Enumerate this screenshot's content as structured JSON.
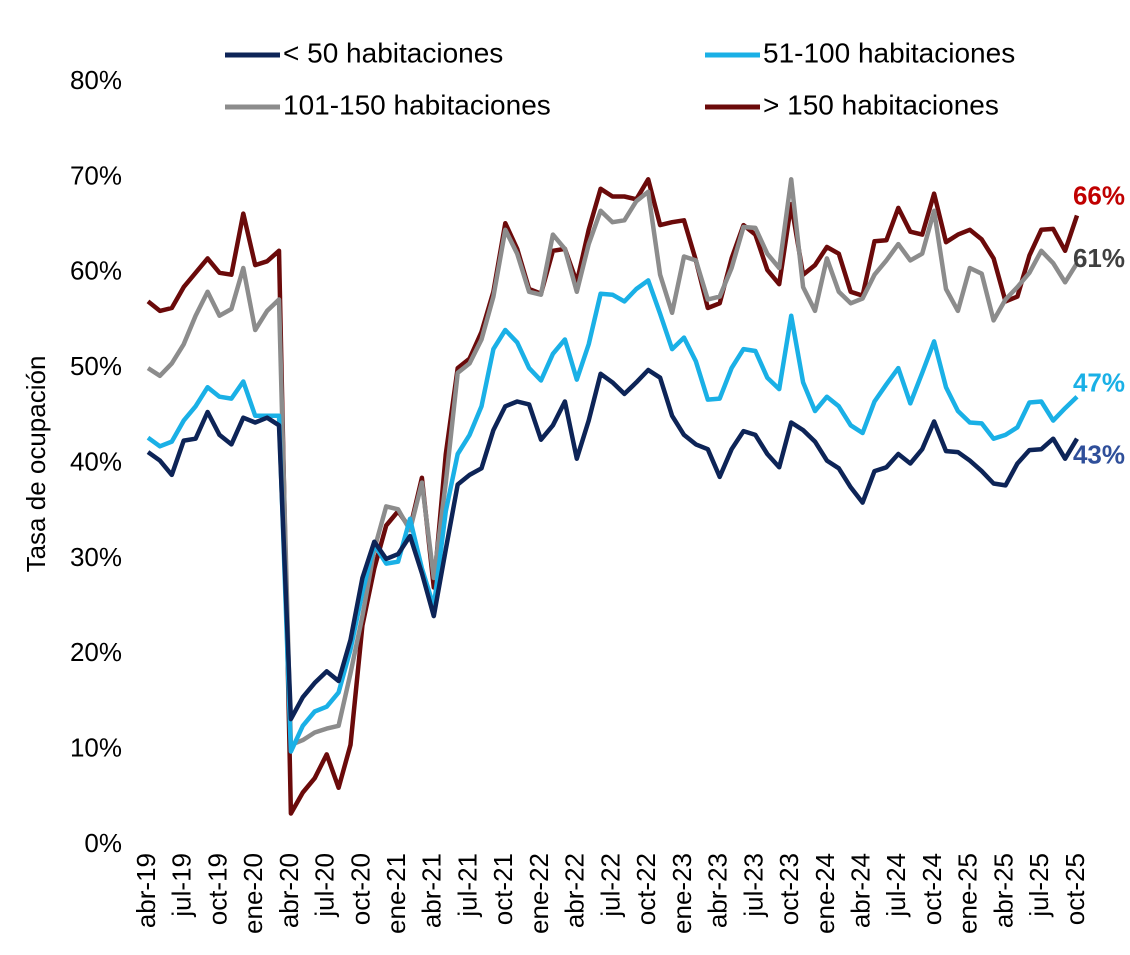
{
  "chart_data": {
    "type": "line",
    "y_axis_label": "Tasa de ocupación",
    "categories": [
      "abr-19",
      null,
      null,
      "jul-19",
      null,
      null,
      "oct-19",
      null,
      null,
      "ene-20",
      null,
      null,
      "abr-20",
      null,
      null,
      "jul-20",
      null,
      null,
      "oct-20",
      null,
      null,
      "ene-21",
      null,
      null,
      "abr-21",
      null,
      null,
      "jul-21",
      null,
      null,
      "oct-21",
      null,
      null,
      "ene-22",
      null,
      null,
      "abr-22",
      null,
      null,
      "jul-22",
      null,
      null,
      "oct-22",
      null,
      null,
      "ene-23",
      null,
      null,
      "abr-23",
      null,
      null,
      "jul-23",
      null,
      null,
      "oct-23",
      null,
      null,
      "ene-24",
      null,
      null,
      "abr-24",
      null,
      null,
      "jul-24",
      null,
      null,
      "oct-24",
      null,
      null,
      "ene-25",
      null,
      null,
      "abr-25",
      null,
      null,
      "jul-25",
      null,
      null,
      "oct-25"
    ],
    "ylim": [
      0,
      80
    ],
    "yticks": [
      {
        "value": 0,
        "label": "0%"
      },
      {
        "value": 10,
        "label": "10%"
      },
      {
        "value": 20,
        "label": "20%"
      },
      {
        "value": 30,
        "label": "30%"
      },
      {
        "value": 40,
        "label": "40%"
      },
      {
        "value": 50,
        "label": "50%"
      },
      {
        "value": 60,
        "label": "60%"
      },
      {
        "value": 70,
        "label": "70%"
      },
      {
        "value": 80,
        "label": "80%"
      }
    ],
    "grid": false,
    "legend": "top",
    "series": [
      {
        "name": "< 50 habitaciones",
        "color": "#0d2457",
        "label_color": "#2f4f9a",
        "values": [
          41.2,
          40.3,
          38.8,
          42.4,
          42.6,
          45.4,
          43.0,
          42.0,
          44.8,
          44.3,
          44.8,
          44.0,
          13.2,
          15.5,
          17.0,
          18.2,
          17.2,
          21.5,
          28.0,
          31.8,
          30.0,
          30.5,
          32.4,
          28.5,
          24.0,
          31.0,
          37.8,
          38.8,
          39.5,
          43.5,
          46.0,
          46.5,
          46.2,
          42.5,
          44.0,
          46.5,
          40.5,
          44.5,
          49.4,
          48.5,
          47.3,
          48.5,
          49.8,
          49.0,
          45.0,
          43.0,
          42.0,
          41.5,
          38.6,
          41.5,
          43.4,
          43.0,
          41.0,
          39.6,
          44.3,
          43.5,
          42.3,
          40.3,
          39.5,
          37.5,
          35.9,
          39.2,
          39.6,
          41.0,
          40.0,
          41.5,
          44.4,
          41.3,
          41.2,
          40.3,
          39.2,
          37.9,
          37.7,
          40.0,
          41.4,
          41.5,
          42.6,
          40.5,
          42.6
        ],
        "value_labels": [
          null,
          null,
          null,
          null,
          null,
          null,
          null,
          null,
          null,
          null,
          null,
          null,
          null,
          null,
          null,
          null,
          null,
          null,
          null,
          null,
          null,
          null,
          null,
          null,
          null,
          null,
          null,
          null,
          null,
          null,
          null,
          null,
          null,
          null,
          null,
          null,
          null,
          null,
          null,
          null,
          null,
          null,
          null,
          null,
          null,
          null,
          null,
          null,
          null,
          null,
          null,
          null,
          null,
          null,
          null,
          null,
          null,
          null,
          null,
          null,
          null,
          null,
          null,
          null,
          null,
          null,
          null,
          null,
          null,
          null,
          null,
          null,
          null,
          null,
          null,
          null,
          null,
          null,
          "43%"
        ]
      },
      {
        "name": "51-100 habitaciones",
        "color": "#1ab0e6",
        "label_color": "#1ab0e6",
        "values": [
          42.7,
          41.8,
          42.3,
          44.5,
          46.0,
          48.0,
          47.0,
          46.8,
          48.6,
          45.0,
          45.0,
          45.0,
          9.8,
          12.5,
          14.0,
          14.5,
          16.0,
          20.5,
          26.5,
          31.5,
          29.5,
          29.7,
          34.2,
          29.0,
          25.0,
          35.0,
          41.0,
          43.0,
          46.0,
          52.0,
          54.0,
          52.7,
          50.0,
          48.7,
          51.5,
          53.0,
          48.8,
          52.5,
          57.8,
          57.7,
          57.0,
          58.3,
          59.2,
          55.7,
          52.0,
          53.2,
          50.7,
          46.7,
          46.8,
          50.0,
          52.0,
          51.8,
          49.0,
          47.8,
          55.5,
          48.5,
          45.5,
          47.0,
          46.0,
          44.0,
          43.2,
          46.5,
          48.3,
          50.0,
          46.3,
          49.5,
          52.8,
          48.0,
          45.5,
          44.3,
          44.2,
          42.6,
          43.0,
          43.8,
          46.4,
          46.5,
          44.5,
          45.8,
          47.0
        ],
        "value_labels": [
          null,
          null,
          null,
          null,
          null,
          null,
          null,
          null,
          null,
          null,
          null,
          null,
          null,
          null,
          null,
          null,
          null,
          null,
          null,
          null,
          null,
          null,
          null,
          null,
          null,
          null,
          null,
          null,
          null,
          null,
          null,
          null,
          null,
          null,
          null,
          null,
          null,
          null,
          null,
          null,
          null,
          null,
          null,
          null,
          null,
          null,
          null,
          null,
          null,
          null,
          null,
          null,
          null,
          null,
          null,
          null,
          null,
          null,
          null,
          null,
          null,
          null,
          null,
          null,
          null,
          null,
          null,
          null,
          null,
          null,
          null,
          null,
          null,
          null,
          null,
          null,
          null,
          null,
          "47%"
        ]
      },
      {
        "name": "101-150 habitaciones",
        "color": "#8c8c8c",
        "label_color": "#404040",
        "values": [
          50.0,
          49.2,
          50.5,
          52.5,
          55.5,
          58.0,
          55.5,
          56.2,
          60.5,
          54.0,
          56.0,
          57.2,
          10.5,
          11.0,
          11.8,
          12.2,
          12.5,
          18.0,
          24.0,
          31.0,
          35.5,
          35.2,
          33.0,
          38.0,
          28.0,
          38.0,
          49.5,
          50.5,
          53.0,
          57.5,
          64.5,
          62.0,
          58.0,
          57.7,
          64.0,
          62.5,
          58.0,
          63.0,
          66.5,
          65.3,
          65.5,
          67.5,
          68.5,
          59.8,
          55.8,
          61.7,
          61.3,
          57.2,
          57.5,
          60.5,
          64.8,
          64.7,
          62.0,
          60.5,
          69.8,
          58.5,
          56.0,
          61.5,
          58.0,
          56.8,
          57.3,
          59.8,
          61.3,
          63.0,
          61.3,
          62.0,
          66.5,
          58.3,
          56.0,
          60.5,
          59.9,
          55.0,
          57.2,
          58.5,
          60.0,
          62.3,
          61.0,
          59.0,
          61.0
        ],
        "value_labels": [
          null,
          null,
          null,
          null,
          null,
          null,
          null,
          null,
          null,
          null,
          null,
          null,
          null,
          null,
          null,
          null,
          null,
          null,
          null,
          null,
          null,
          null,
          null,
          null,
          null,
          null,
          null,
          null,
          null,
          null,
          null,
          null,
          null,
          null,
          null,
          null,
          null,
          null,
          null,
          null,
          null,
          null,
          null,
          null,
          null,
          null,
          null,
          null,
          null,
          null,
          null,
          null,
          null,
          null,
          null,
          null,
          null,
          null,
          null,
          null,
          null,
          null,
          null,
          null,
          null,
          null,
          null,
          null,
          null,
          null,
          null,
          null,
          null,
          null,
          null,
          null,
          null,
          null,
          "61%"
        ]
      },
      {
        "name": "> 150 habitaciones",
        "color": "#6b0a0a",
        "label_color": "#c00000",
        "values": [
          57.0,
          56.0,
          56.3,
          58.5,
          60.0,
          61.5,
          60.0,
          59.8,
          66.2,
          60.8,
          61.2,
          62.3,
          3.3,
          5.5,
          7.0,
          9.5,
          6.0,
          10.5,
          23.0,
          29.0,
          33.5,
          35.0,
          33.2,
          38.5,
          27.0,
          41.0,
          50.0,
          51.0,
          53.8,
          58.0,
          65.2,
          62.5,
          58.3,
          57.8,
          62.3,
          62.5,
          59.0,
          64.5,
          68.8,
          68.0,
          68.0,
          67.7,
          69.8,
          65.0,
          65.3,
          65.5,
          61.3,
          56.3,
          56.8,
          61.5,
          65.0,
          64.0,
          60.3,
          58.8,
          67.2,
          59.8,
          60.8,
          62.7,
          62.0,
          58.0,
          57.6,
          63.3,
          63.4,
          66.8,
          64.3,
          64.0,
          68.3,
          63.2,
          64.0,
          64.5,
          63.5,
          61.5,
          57.0,
          57.5,
          61.8,
          64.5,
          64.6,
          62.3,
          66.0
        ],
        "value_labels": [
          null,
          null,
          null,
          null,
          null,
          null,
          null,
          null,
          null,
          null,
          null,
          null,
          null,
          null,
          null,
          null,
          null,
          null,
          null,
          null,
          null,
          null,
          null,
          null,
          null,
          null,
          null,
          null,
          null,
          null,
          null,
          null,
          null,
          null,
          null,
          null,
          null,
          null,
          null,
          null,
          null,
          null,
          null,
          null,
          null,
          null,
          null,
          null,
          null,
          null,
          null,
          null,
          null,
          null,
          null,
          null,
          null,
          null,
          null,
          null,
          null,
          null,
          null,
          null,
          null,
          null,
          null,
          null,
          null,
          null,
          null,
          null,
          null,
          null,
          null,
          null,
          null,
          null,
          "66%"
        ]
      }
    ]
  }
}
